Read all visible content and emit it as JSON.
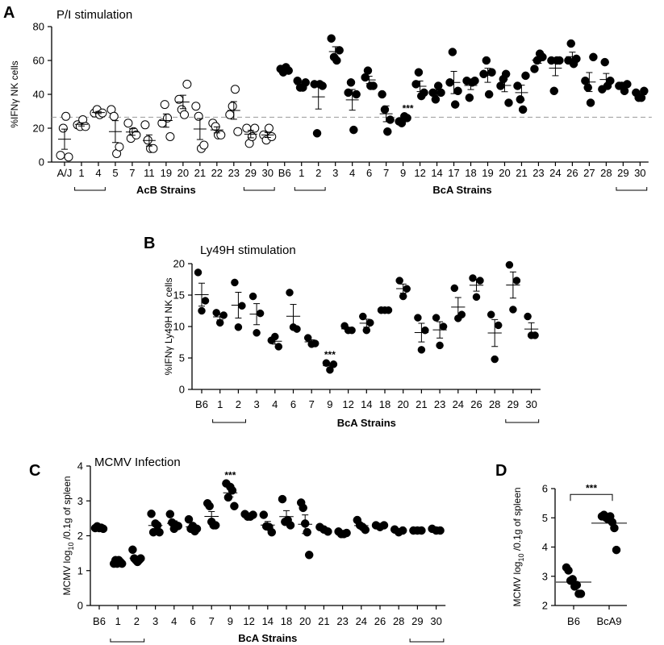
{
  "chart_data": [
    {
      "panel": "A",
      "type": "scatter",
      "title": "P/I stimulation",
      "ylabel": "%IFNγ NK cells",
      "ylim": [
        0,
        80
      ],
      "yticks": [
        0,
        20,
        40,
        60,
        80
      ],
      "reference_line": 26.5,
      "categories": [
        "A/J",
        "1",
        "4",
        "5",
        "7",
        "11",
        "19",
        "20",
        "21",
        "22",
        "23",
        "29",
        "30",
        "B6",
        "1",
        "2",
        "3",
        "4",
        "6",
        "7",
        "9",
        "12",
        "14",
        "17",
        "18",
        "19",
        "20",
        "21",
        "23",
        "24",
        "26",
        "27",
        "28",
        "29",
        "30"
      ],
      "group_labels": [
        {
          "text": "AcB Strains",
          "from": 0,
          "to": 12
        },
        {
          "text": "BcA Strains",
          "from": 13,
          "to": 34
        }
      ],
      "brackets": [
        [
          1,
          2
        ],
        [
          11,
          12
        ],
        [
          14,
          15
        ],
        [
          33,
          34
        ]
      ],
      "significance": [
        {
          "index": 20,
          "text": "***"
        }
      ],
      "series": [
        {
          "marker": "open",
          "from": 0,
          "points": [
            [
              4,
              20,
              27,
              3
            ],
            [
              22,
              21,
              25,
              21
            ],
            [
              29,
              31,
              28,
              29
            ],
            [
              31,
              27,
              5,
              9
            ],
            [
              23,
              14,
              18,
              16
            ],
            [
              22,
              13,
              8,
              8
            ],
            [
              23,
              34,
              26,
              15
            ],
            [
              37,
              31,
              28,
              46
            ],
            [
              33,
              27,
              8,
              10
            ],
            [
              23,
              21,
              16,
              16
            ],
            [
              28,
              33,
              43,
              18
            ],
            [
              20,
              11,
              15,
              20
            ],
            [
              16,
              13,
              20,
              15
            ]
          ]
        },
        {
          "marker": "filled",
          "from": 13,
          "points": [
            [
              55,
              53,
              56,
              54
            ],
            [
              48,
              44,
              44,
              47
            ],
            [
              46,
              17,
              46,
              45
            ],
            [
              73,
              62,
              60,
              66
            ],
            [
              41,
              47,
              19,
              40
            ],
            [
              50,
              54,
              45,
              45
            ],
            [
              40,
              31,
              18,
              25
            ],
            [
              24,
              23,
              27,
              26
            ],
            [
              46,
              53,
              39,
              41
            ],
            [
              41,
              37,
              45,
              41
            ],
            [
              47,
              65,
              34,
              42
            ],
            [
              48,
              38,
              47,
              48
            ],
            [
              52,
              60,
              40,
              53
            ],
            [
              45,
              49,
              52,
              35
            ],
            [
              45,
              37,
              31,
              51
            ],
            [
              55,
              60,
              64,
              62
            ],
            [
              60,
              42,
              60,
              60
            ],
            [
              60,
              70,
              58,
              61
            ],
            [
              48,
              44,
              35,
              62
            ],
            [
              43,
              59,
              45,
              48
            ],
            [
              45,
              45,
              42,
              46
            ],
            [
              41,
              38,
              38,
              42
            ]
          ]
        }
      ]
    },
    {
      "panel": "B",
      "type": "scatter",
      "title": "Ly49H stimulation",
      "ylabel": "%IFNγ Ly49H NK cells",
      "ylim": [
        0,
        20
      ],
      "yticks": [
        0,
        5,
        10,
        15,
        20
      ],
      "categories": [
        "B6",
        "1",
        "2",
        "3",
        "4",
        "6",
        "7",
        "9",
        "12",
        "14",
        "18",
        "20",
        "21",
        "23",
        "24",
        "26",
        "28",
        "29",
        "30"
      ],
      "group_labels": [
        {
          "text": "BcA Strains",
          "from": 0,
          "to": 18
        }
      ],
      "brackets": [
        [
          1,
          2
        ],
        [
          17,
          18
        ]
      ],
      "significance": [
        {
          "index": 7,
          "text": "***"
        }
      ],
      "series": [
        {
          "marker": "filled",
          "from": 0,
          "points": [
            [
              18.6,
              12.5,
              14.1
            ],
            [
              12.2,
              10.6,
              11.8
            ],
            [
              17.0,
              9.9,
              13.3
            ],
            [
              14.8,
              9.0,
              12.1
            ],
            [
              7.8,
              8.4,
              6.8
            ],
            [
              15.4,
              9.9,
              9.6
            ],
            [
              8.2,
              7.2,
              7.3
            ],
            [
              4.2,
              3.1,
              4.0
            ],
            [
              10.1,
              9.4,
              9.4
            ],
            [
              11.6,
              9.4,
              10.6
            ],
            [
              12.6,
              12.6,
              12.6
            ],
            [
              17.3,
              14.8,
              16.0
            ],
            [
              11.4,
              6.3,
              9.4
            ],
            [
              11.4,
              7.0,
              10.0
            ],
            [
              16.1,
              11.3,
              11.9
            ],
            [
              17.7,
              14.7,
              17.3
            ],
            [
              11.9,
              4.8,
              10.2
            ],
            [
              19.8,
              12.7,
              17.3
            ],
            [
              11.6,
              8.6,
              8.6
            ]
          ]
        }
      ]
    },
    {
      "panel": "C",
      "type": "scatter",
      "title": "MCMV Infection",
      "ylabel": "MCMV log10 /0.1g of spleen",
      "ylim": [
        0,
        4
      ],
      "yticks": [
        0,
        1,
        2,
        3,
        4
      ],
      "categories": [
        "B6",
        "1",
        "2",
        "3",
        "4",
        "6",
        "7",
        "9",
        "12",
        "14",
        "18",
        "20",
        "21",
        "23",
        "24",
        "26",
        "28",
        "29",
        "30"
      ],
      "group_labels": [
        {
          "text": "BcA Strains",
          "from": 0,
          "to": 18
        }
      ],
      "brackets": [
        [
          1,
          2
        ],
        [
          17,
          18
        ]
      ],
      "significance": [
        {
          "index": 7,
          "text": "***"
        }
      ],
      "series": [
        {
          "marker": "filled",
          "from": 0,
          "points": [
            [
              2.22,
              2.27,
              2.22,
              2.23,
              2.2
            ],
            [
              1.2,
              1.3,
              1.2,
              1.3,
              1.25,
              1.2
            ],
            [
              1.6,
              1.35,
              1.3,
              1.25,
              1.3,
              1.35
            ],
            [
              2.63,
              2.1,
              2.35,
              2.3,
              2.1
            ],
            [
              2.62,
              2.38,
              2.2,
              2.3,
              2.28
            ],
            [
              2.47,
              2.2,
              2.28,
              2.13,
              2.2
            ],
            [
              2.93,
              2.85,
              2.4,
              2.3,
              2.3
            ],
            [
              3.5,
              3.1,
              3.4,
              3.3,
              2.85
            ],
            [
              2.62,
              2.55,
              2.55,
              2.6
            ],
            [
              2.6,
              2.27,
              2.25,
              2.1
            ],
            [
              3.05,
              2.4,
              2.45,
              2.3
            ],
            [
              2.95,
              2.8,
              2.35,
              2.1,
              1.45
            ],
            [
              2.25,
              2.18,
              2.12
            ],
            [
              2.12,
              2.05,
              2.05,
              2.08
            ],
            [
              2.45,
              2.3,
              2.25,
              2.17
            ],
            [
              2.3,
              2.25,
              2.3
            ],
            [
              2.18,
              2.1,
              2.15
            ],
            [
              2.15,
              2.15,
              2.15
            ],
            [
              2.2,
              2.15,
              2.15
            ]
          ]
        }
      ]
    },
    {
      "panel": "D",
      "type": "scatter",
      "ylabel": "MCMV log10 /0.1g of spleen",
      "ylim": [
        2,
        6
      ],
      "yticks": [
        2,
        3,
        4,
        5,
        6
      ],
      "categories": [
        "B6",
        "BcA9"
      ],
      "significance": [
        {
          "text": "***",
          "between": [
            0,
            1
          ]
        }
      ],
      "series": [
        {
          "marker": "filled",
          "from": 0,
          "points": [
            [
              3.3,
              3.2,
              2.85,
              2.9,
              2.65,
              2.7,
              2.4,
              2.4
            ],
            [
              5.05,
              5.1,
              5.0,
              4.95,
              5.05,
              4.85,
              4.65,
              3.9
            ]
          ]
        }
      ]
    }
  ]
}
